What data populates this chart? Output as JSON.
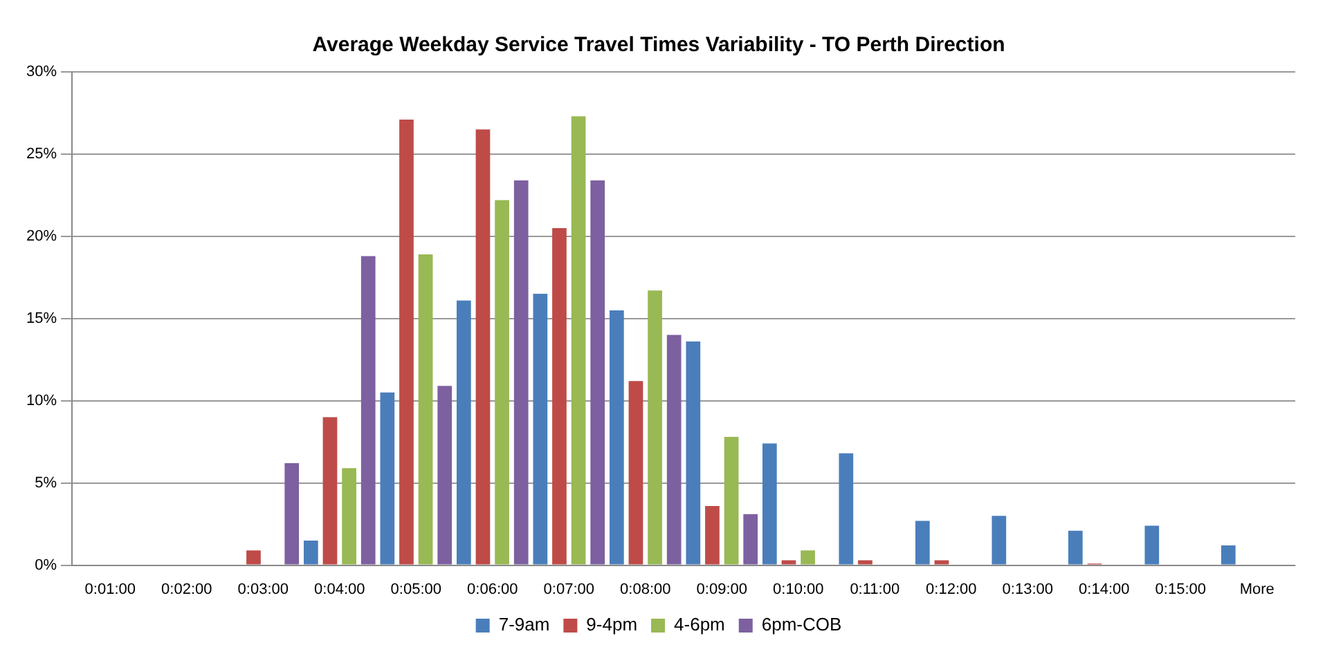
{
  "chart_data": {
    "type": "bar",
    "title": "Average Weekday Service Travel Times Variability - TO Perth Direction",
    "categories": [
      "0:01:00",
      "0:02:00",
      "0:03:00",
      "0:04:00",
      "0:05:00",
      "0:06:00",
      "0:07:00",
      "0:08:00",
      "0:09:00",
      "0:10:00",
      "0:11:00",
      "0:12:00",
      "0:13:00",
      "0:14:00",
      "0:15:00",
      "More"
    ],
    "series": [
      {
        "name": "7-9am",
        "color": "#4a7ebb",
        "values": [
          0,
          0,
          0,
          1.5,
          10.5,
          16.1,
          16.5,
          15.5,
          13.6,
          7.4,
          6.8,
          2.7,
          3.0,
          2.1,
          2.4,
          1.2
        ]
      },
      {
        "name": "9-4pm",
        "color": "#be4b48",
        "values": [
          0,
          0,
          0.9,
          9.0,
          27.1,
          26.5,
          20.5,
          11.2,
          3.6,
          0.3,
          0.3,
          0.3,
          0,
          0.1,
          0,
          0
        ]
      },
      {
        "name": "4-6pm",
        "color": "#98b954",
        "values": [
          0,
          0,
          0,
          5.9,
          18.9,
          22.2,
          27.3,
          16.7,
          7.8,
          0.9,
          0,
          0,
          0,
          0,
          0,
          0
        ]
      },
      {
        "name": "6pm-COB",
        "color": "#7d60a0",
        "values": [
          0,
          0,
          6.2,
          18.8,
          10.9,
          23.4,
          23.4,
          14.0,
          3.1,
          0,
          0,
          0,
          0,
          0,
          0,
          0
        ]
      }
    ],
    "ylim": [
      0,
      30
    ],
    "yticks": [
      {
        "value": 0,
        "label": "0%"
      },
      {
        "value": 5,
        "label": "5%"
      },
      {
        "value": 10,
        "label": "10%"
      },
      {
        "value": 15,
        "label": "15%"
      },
      {
        "value": 20,
        "label": "20%"
      },
      {
        "value": 25,
        "label": "25%"
      },
      {
        "value": 30,
        "label": "30%"
      }
    ],
    "grid": "y",
    "legend": "bottom"
  }
}
